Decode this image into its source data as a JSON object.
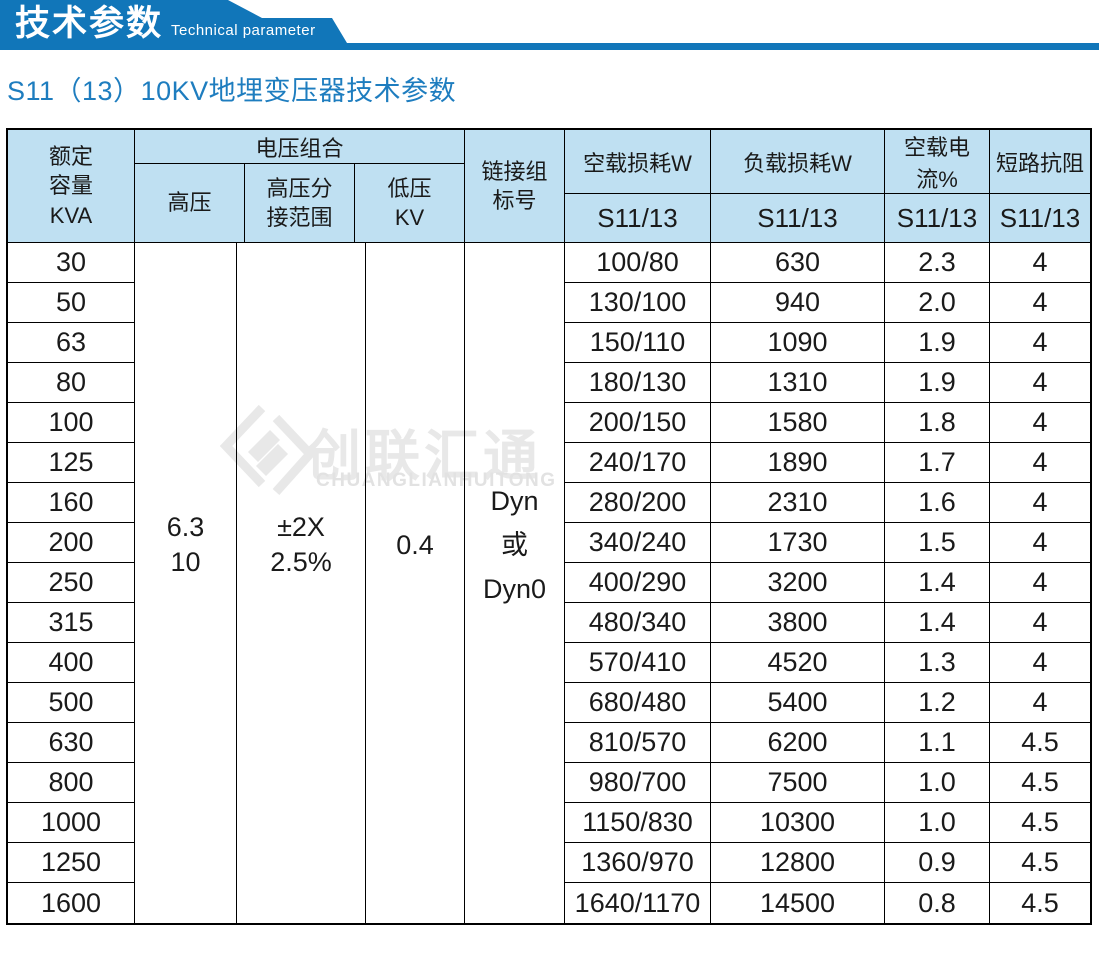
{
  "colors": {
    "accent": "#1176b9",
    "title_blue": "#1e7dbf",
    "header_bg": "#bfe0f2",
    "border": "#000000",
    "watermark_gray": "#e8e8e8"
  },
  "banner": {
    "title_zh": "技术参数",
    "title_en": "Technical parameter"
  },
  "page_title": "S11（13）10KV地埋变压器技术参数",
  "watermark": {
    "icon": "clht-diamond-logo",
    "name_zh": "创联汇通",
    "name_en": "CHUANGLIANHUITONG"
  },
  "table": {
    "header": {
      "capacity": "额定\n容量\nKVA",
      "voltage_group": "电压组合",
      "hv": "高压",
      "hv_tap": "高压分\n接范围",
      "lv": "低压\nKV",
      "vector_group": "链接组\n标号",
      "noload_loss": "空载损耗W",
      "load_loss": "负载损耗W",
      "noload_current": "空载电流%",
      "impedance": "短路抗阻",
      "model_noload_loss": "S11/13",
      "model_load_loss": "S11/13",
      "model_noload_current": "S11/13",
      "model_impedance": "S11/13"
    },
    "merged": {
      "hv": "6.3\n10",
      "hv_tap": "±2X\n2.5%",
      "lv": "0.4",
      "vector": "Dyn\n或\nDyn0"
    },
    "rows": [
      {
        "kva": "30",
        "noload_loss": "100/80",
        "load_loss": "630",
        "noload_current": "2.3",
        "impedance": "4"
      },
      {
        "kva": "50",
        "noload_loss": "130/100",
        "load_loss": "940",
        "noload_current": "2.0",
        "impedance": "4"
      },
      {
        "kva": "63",
        "noload_loss": "150/110",
        "load_loss": "1090",
        "noload_current": "1.9",
        "impedance": "4"
      },
      {
        "kva": "80",
        "noload_loss": "180/130",
        "load_loss": "1310",
        "noload_current": "1.9",
        "impedance": "4"
      },
      {
        "kva": "100",
        "noload_loss": "200/150",
        "load_loss": "1580",
        "noload_current": "1.8",
        "impedance": "4"
      },
      {
        "kva": "125",
        "noload_loss": "240/170",
        "load_loss": "1890",
        "noload_current": "1.7",
        "impedance": "4"
      },
      {
        "kva": "160",
        "noload_loss": "280/200",
        "load_loss": "2310",
        "noload_current": "1.6",
        "impedance": "4"
      },
      {
        "kva": "200",
        "noload_loss": "340/240",
        "load_loss": "1730",
        "noload_current": "1.5",
        "impedance": "4"
      },
      {
        "kva": "250",
        "noload_loss": "400/290",
        "load_loss": "3200",
        "noload_current": "1.4",
        "impedance": "4"
      },
      {
        "kva": "315",
        "noload_loss": "480/340",
        "load_loss": "3800",
        "noload_current": "1.4",
        "impedance": "4"
      },
      {
        "kva": "400",
        "noload_loss": "570/410",
        "load_loss": "4520",
        "noload_current": "1.3",
        "impedance": "4"
      },
      {
        "kva": "500",
        "noload_loss": "680/480",
        "load_loss": "5400",
        "noload_current": "1.2",
        "impedance": "4"
      },
      {
        "kva": "630",
        "noload_loss": "810/570",
        "load_loss": "6200",
        "noload_current": "1.1",
        "impedance": "4.5"
      },
      {
        "kva": "800",
        "noload_loss": "980/700",
        "load_loss": "7500",
        "noload_current": "1.0",
        "impedance": "4.5"
      },
      {
        "kva": "1000",
        "noload_loss": "1150/830",
        "load_loss": "10300",
        "noload_current": "1.0",
        "impedance": "4.5"
      },
      {
        "kva": "1250",
        "noload_loss": "1360/970",
        "load_loss": "12800",
        "noload_current": "0.9",
        "impedance": "4.5"
      },
      {
        "kva": "1600",
        "noload_loss": "1640/1170",
        "load_loss": "14500",
        "noload_current": "0.8",
        "impedance": "4.5"
      }
    ]
  }
}
